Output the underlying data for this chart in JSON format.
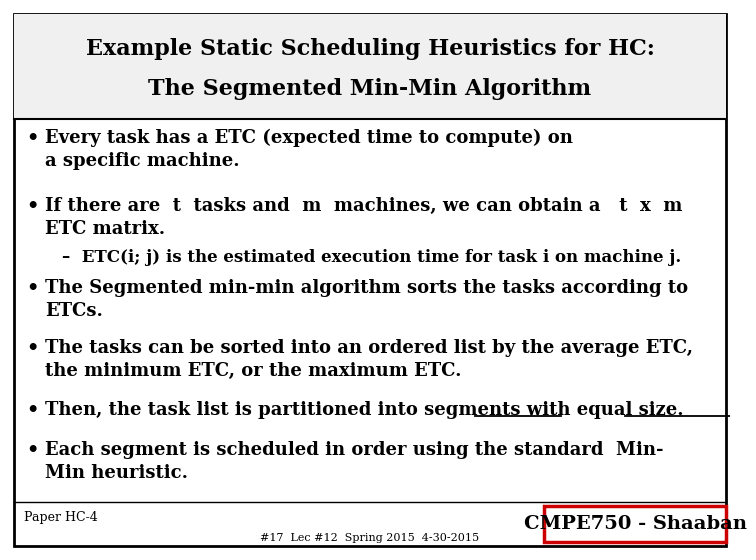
{
  "title_line1": "Example Static Scheduling Heuristics for HC:",
  "title_line2": "The Segmented Min-Min Algorithm",
  "bg_color": "#ffffff",
  "border_color": "#000000",
  "text_color": "#000000",
  "bullet1": "Every task has a ETC (expected time to compute) on\na specific machine.",
  "bullet2": "If there are  t  tasks and  m  machines, we can obtain a   t  x  m\nETC matrix.",
  "sub_bullet": "–  ETC(i; j) is the estimated execution time for task i on machine j.",
  "bullet3": "The Segmented min-min algorithm sorts the tasks according to\nETCs.",
  "bullet4": "The tasks can be sorted into an ordered list by the average ETC,\nthe minimum ETC, or the maximum ETC.",
  "bullet5": "Then, the task list is partitioned into segments with equal size.",
  "bullet5_pre": "Then, the task list is partitioned into ",
  "bullet5_seg": "segments",
  "bullet5_mid": " with ",
  "bullet5_eq": "equal size.",
  "bullet6_l1": "Each segment is scheduled in order using the standard  Min-",
  "bullet6_l2": "Min heuristic.",
  "footer_left": "Paper HC-4",
  "footer_center": "#17  Lec #12  Spring 2015  4-30-2015",
  "footer_right": "CMPE750 - Shaaban",
  "title_fontsize": 16,
  "body_fontsize": 13,
  "sub_fontsize": 12,
  "footer_fontsize": 9,
  "badge_fontsize": 14
}
